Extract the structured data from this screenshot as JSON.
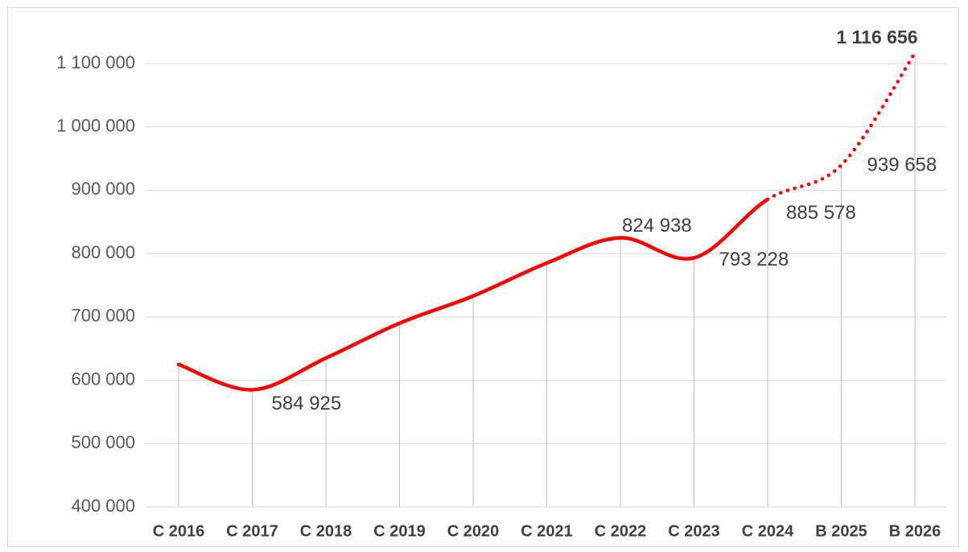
{
  "chart_data": {
    "type": "line",
    "categories": [
      "C 2016",
      "C 2017",
      "C 2018",
      "C 2019",
      "C 2020",
      "C 2021",
      "C 2022",
      "C 2023",
      "C 2024",
      "B 2025",
      "B 2026"
    ],
    "series": [
      {
        "color": "#ff0000",
        "values": [
          625000,
          584925,
          635000,
          690000,
          733000,
          785000,
          824938,
          793228,
          885578,
          939658,
          1116656
        ],
        "value_labels": [
          null,
          "584 925",
          null,
          null,
          null,
          null,
          "824 938",
          "793 228",
          "885 578",
          "939 658",
          "1 116 656"
        ]
      }
    ],
    "dotted_from": 8,
    "ylim": [
      400000,
      1100000
    ],
    "yticks": [
      {
        "value": 400000,
        "label": "400 000"
      },
      {
        "value": 500000,
        "label": "500 000"
      },
      {
        "value": 600000,
        "label": "600 000"
      },
      {
        "value": 700000,
        "label": "700 000"
      },
      {
        "value": 800000,
        "label": "800 000"
      },
      {
        "value": 900000,
        "label": "900 000"
      },
      {
        "value": 1000000,
        "label": "1 000 000"
      },
      {
        "value": 1100000,
        "label": "1 100 000"
      }
    ],
    "grid": true
  }
}
